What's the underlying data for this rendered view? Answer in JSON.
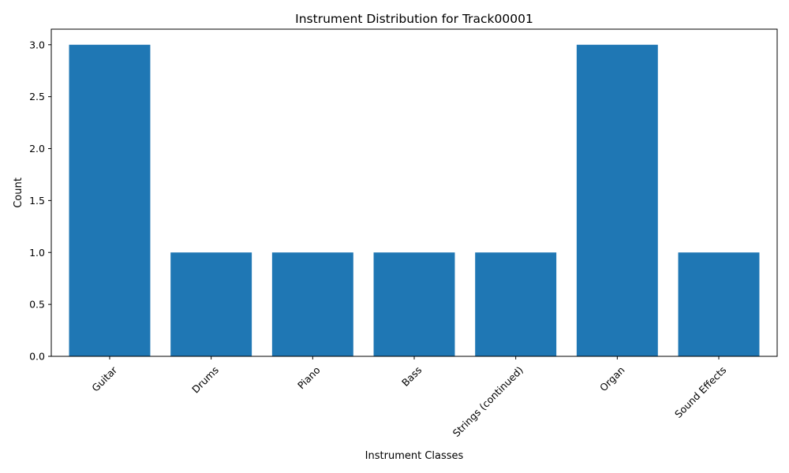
{
  "chart_data": {
    "type": "bar",
    "title": "Instrument Distribution for Track00001",
    "xlabel": "Instrument Classes",
    "ylabel": "Count",
    "categories": [
      "Guitar",
      "Drums",
      "Piano",
      "Bass",
      "Strings (continued)",
      "Organ",
      "Sound Effects"
    ],
    "values": [
      3,
      1,
      1,
      1,
      1,
      3,
      1
    ],
    "ylim": [
      0,
      3.15
    ],
    "yticks": [
      "0.0",
      "0.5",
      "1.0",
      "1.5",
      "2.0",
      "2.5",
      "3.0"
    ],
    "grid": false,
    "legend": "none",
    "bar_color": "#1f77b4"
  }
}
